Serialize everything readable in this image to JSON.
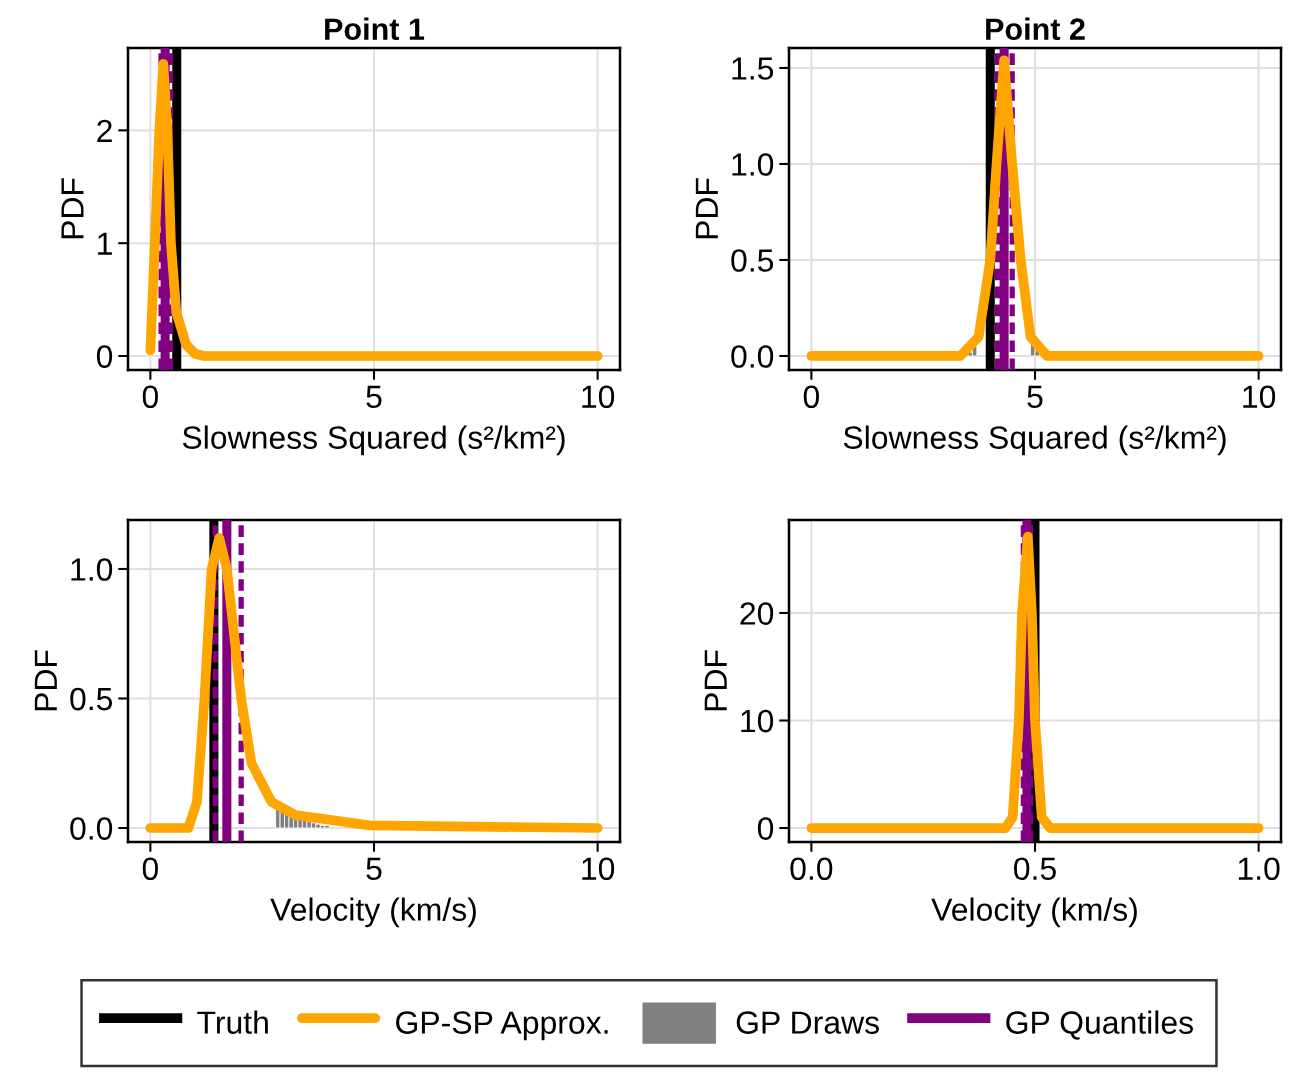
{
  "chart_data": [
    {
      "type": "line",
      "title": "Point 1",
      "xlabel": "Slowness Squared (s²/km²)",
      "ylabel": "PDF",
      "xlim": [
        -0.5,
        10.5
      ],
      "ylim": [
        -0.124,
        2.73
      ],
      "xticks": [
        0,
        5,
        10
      ],
      "yticks": [
        0,
        1,
        2
      ],
      "grid": true,
      "legend": "bottom",
      "series": [
        {
          "name": "GP-SP Approx.",
          "type": "line",
          "color": "#ffa500",
          "x": [
            0,
            0.1,
            0.2,
            0.29,
            0.38,
            0.46,
            0.58,
            0.8,
            1.0,
            1.2,
            10
          ],
          "values": [
            0.05,
            1.0,
            2.0,
            2.59,
            2.0,
            1.0,
            0.39,
            0.1,
            0.02,
            0.0,
            0.0
          ]
        }
      ],
      "ref_lines": [
        {
          "axis": "x",
          "value": 0.59,
          "label": "Truth",
          "color": "#000000",
          "line_style": "solid"
        },
        {
          "axis": "x",
          "value": 0.24,
          "color": "#800080",
          "line_style": "dashed"
        },
        {
          "axis": "x",
          "value": 0.33,
          "label": "GP Quantiles",
          "color": "#800080",
          "line_style": "solid"
        },
        {
          "axis": "x",
          "value": 0.45,
          "color": "#800080",
          "line_style": "dashed"
        }
      ]
    },
    {
      "type": "line",
      "title": "Point 2",
      "xlabel": "Slowness Squared (s²/km²)",
      "ylabel": "PDF",
      "xlim": [
        -0.5,
        10.5
      ],
      "ylim": [
        -0.073,
        1.604
      ],
      "xticks": [
        0,
        5,
        10
      ],
      "yticks": [
        {
          "value": 0,
          "label": "0.0"
        },
        {
          "value": 0.5,
          "label": "0.5"
        },
        {
          "value": 1.0,
          "label": "1.0"
        },
        {
          "value": 1.5,
          "label": "1.5"
        }
      ],
      "grid": true,
      "series": [
        {
          "type": "line",
          "color": "#ffa500",
          "x": [
            0,
            3.33,
            3.74,
            4.0,
            4.14,
            4.31,
            4.49,
            4.68,
            4.9,
            5.27,
            10
          ],
          "values": [
            0.0,
            0.0,
            0.1,
            0.5,
            1.0,
            1.54,
            1.0,
            0.5,
            0.1,
            0.0,
            0.0
          ]
        },
        {
          "type": "histogram",
          "color": "#808080",
          "bins": [
            3.5,
            3.6,
            3.7,
            3.8,
            3.9,
            4.0,
            4.1,
            4.2,
            4.3,
            4.4,
            4.5,
            4.6,
            4.7,
            4.8,
            4.9,
            5.0,
            5.1,
            5.2
          ],
          "values": [
            0.02,
            0.05,
            null,
            null,
            null,
            null,
            null,
            null,
            null,
            null,
            null,
            null,
            null,
            null,
            0.07,
            0.03,
            null
          ]
        }
      ],
      "ref_lines": [
        {
          "axis": "x",
          "value": 4.0,
          "color": "#000000",
          "line_style": "solid"
        },
        {
          "axis": "x",
          "value": 4.16,
          "color": "#800080",
          "line_style": "dashed"
        },
        {
          "axis": "x",
          "value": 4.31,
          "color": "#800080",
          "line_style": "solid"
        },
        {
          "axis": "x",
          "value": 4.49,
          "color": "#800080",
          "line_style": "dashed"
        }
      ]
    },
    {
      "type": "line",
      "xlabel": "Velocity (km/s)",
      "ylabel": "PDF",
      "xlim": [
        -0.5,
        10.5
      ],
      "ylim": [
        -0.054,
        1.189
      ],
      "xticks": [
        0,
        5,
        10
      ],
      "yticks": [
        {
          "value": 0,
          "label": "0.0"
        },
        {
          "value": 0.5,
          "label": "0.5"
        },
        {
          "value": 1.0,
          "label": "1.0"
        }
      ],
      "grid": true,
      "series": [
        {
          "type": "line",
          "color": "#ffa500",
          "x": [
            0,
            0.85,
            1.04,
            1.21,
            1.37,
            1.54,
            1.71,
            2.03,
            2.26,
            2.71,
            3.24,
            4.9,
            10
          ],
          "values": [
            0.0,
            0.0,
            0.1,
            0.5,
            1.0,
            1.12,
            1.0,
            0.5,
            0.25,
            0.1,
            0.05,
            0.01,
            0.0
          ]
        },
        {
          "name": "GP Draws",
          "type": "histogram",
          "color": "#808080",
          "bins": [
            0.9,
            1.0,
            1.1,
            1.2,
            1.3,
            1.4,
            1.5,
            1.6,
            1.7,
            1.8,
            1.9,
            2.0,
            2.1,
            2.2,
            2.3,
            2.4,
            2.5,
            2.6,
            2.7,
            2.8,
            2.9,
            3.0,
            3.1,
            3.2,
            3.3,
            3.4,
            3.5,
            3.6,
            3.7,
            3.8,
            3.9,
            4.0
          ],
          "values": [
            null,
            null,
            null,
            null,
            null,
            null,
            null,
            null,
            null,
            null,
            null,
            null,
            null,
            null,
            null,
            null,
            null,
            null,
            null,
            0.08,
            0.07,
            0.06,
            0.05,
            0.04,
            0.035,
            0.03,
            0.025,
            0.02,
            0.015,
            0.01,
            0.01
          ]
        }
      ],
      "ref_lines": [
        {
          "axis": "x",
          "value": 1.42,
          "color": "#000000",
          "line_style": "solid"
        },
        {
          "axis": "x",
          "value": 1.45,
          "color": "#800080",
          "line_style": "dashed"
        },
        {
          "axis": "x",
          "value": 1.71,
          "color": "#800080",
          "line_style": "solid"
        },
        {
          "axis": "x",
          "value": 2.03,
          "color": "#800080",
          "line_style": "dashed"
        }
      ]
    },
    {
      "type": "line",
      "xlabel": "Velocity (km/s)",
      "ylabel": "PDF",
      "xlim": [
        -0.05,
        1.05
      ],
      "ylim": [
        -1.3,
        28.65
      ],
      "xticks": [
        {
          "value": 0,
          "label": "0.0"
        },
        {
          "value": 0.5,
          "label": "0.5"
        },
        {
          "value": 1.0,
          "label": "1.0"
        }
      ],
      "yticks": [
        0,
        10,
        20
      ],
      "grid": true,
      "series": [
        {
          "type": "line",
          "color": "#ffa500",
          "x": [
            0,
            0.434,
            0.45,
            0.464,
            0.471,
            0.484,
            0.493,
            0.5,
            0.515,
            0.534,
            1.0
          ],
          "values": [
            0.0,
            0.0,
            1.0,
            10.0,
            20.0,
            27.1,
            20.0,
            10.0,
            1.0,
            0.0,
            0.0
          ]
        }
      ],
      "ref_lines": [
        {
          "axis": "x",
          "value": 0.5,
          "color": "#000000",
          "line_style": "solid"
        },
        {
          "axis": "x",
          "value": 0.474,
          "color": "#800080",
          "line_style": "dashed"
        },
        {
          "axis": "x",
          "value": 0.482,
          "color": "#800080",
          "line_style": "solid"
        },
        {
          "axis": "x",
          "value": 0.49,
          "color": "#800080",
          "line_style": "dashed"
        }
      ]
    }
  ]
}
